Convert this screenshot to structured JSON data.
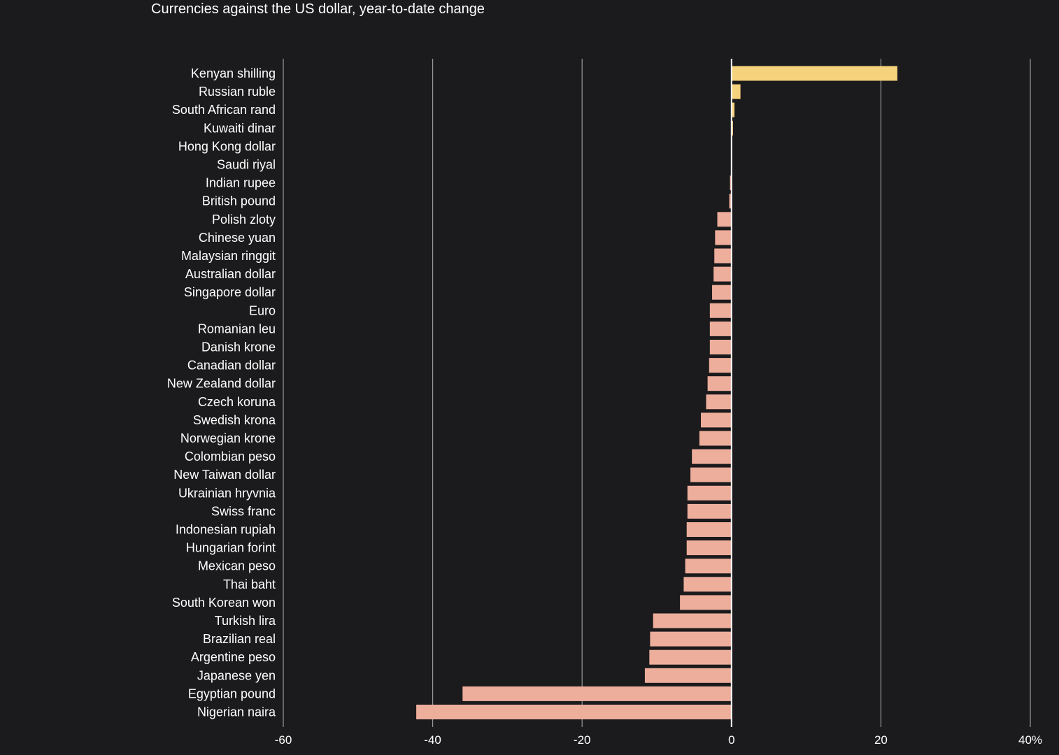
{
  "chart_data": {
    "type": "bar",
    "orientation": "horizontal",
    "title": "Currencies against the US dollar, year-to-date change",
    "xlabel": "",
    "ylabel": "",
    "xlim": [
      -60,
      40
    ],
    "x_ticks": [
      -60,
      -40,
      -20,
      0,
      20,
      40
    ],
    "x_tick_labels": [
      "-60",
      "-40",
      "-20",
      "0",
      "20",
      "40%"
    ],
    "grid": true,
    "colors": {
      "positive": "#f5d27c",
      "negative": "#eeae9c",
      "gridline": "#9a9a9a",
      "zero_line": "#ffffff",
      "background": "#1b1a1c"
    },
    "categories": [
      "Kenyan shilling",
      "Russian ruble",
      "South African rand",
      "Kuwaiti dinar",
      "Hong Kong dollar",
      "Saudi riyal",
      "Indian rupee",
      "British pound",
      "Polish zloty",
      "Chinese yuan",
      "Malaysian ringgit",
      "Australian dollar",
      "Singapore dollar",
      "Euro",
      "Romanian leu",
      "Danish krone",
      "Canadian dollar",
      "New Zealand dollar",
      "Czech koruna",
      "Swedish krona",
      "Norwegian krone",
      "Colombian peso",
      "New Taiwan dollar",
      "Ukrainian hryvnia",
      "Swiss franc",
      "Indonesian rupiah",
      "Hungarian forint",
      "Mexican peso",
      "Thai baht",
      "South Korean won",
      "Turkish lira",
      "Brazilian real",
      "Argentine peso",
      "Japanese yen",
      "Egyptian pound",
      "Nigerian naira"
    ],
    "values": [
      22.2,
      1.2,
      0.4,
      0.2,
      0.05,
      0.0,
      -0.2,
      -0.3,
      -1.9,
      -2.2,
      -2.3,
      -2.4,
      -2.6,
      -2.9,
      -2.9,
      -2.9,
      -3.0,
      -3.2,
      -3.4,
      -4.1,
      -4.3,
      -5.3,
      -5.5,
      -5.9,
      -5.9,
      -6.0,
      -6.0,
      -6.2,
      -6.4,
      -6.9,
      -10.5,
      -10.9,
      -11.0,
      -11.6,
      -36.0,
      -42.2
    ]
  }
}
